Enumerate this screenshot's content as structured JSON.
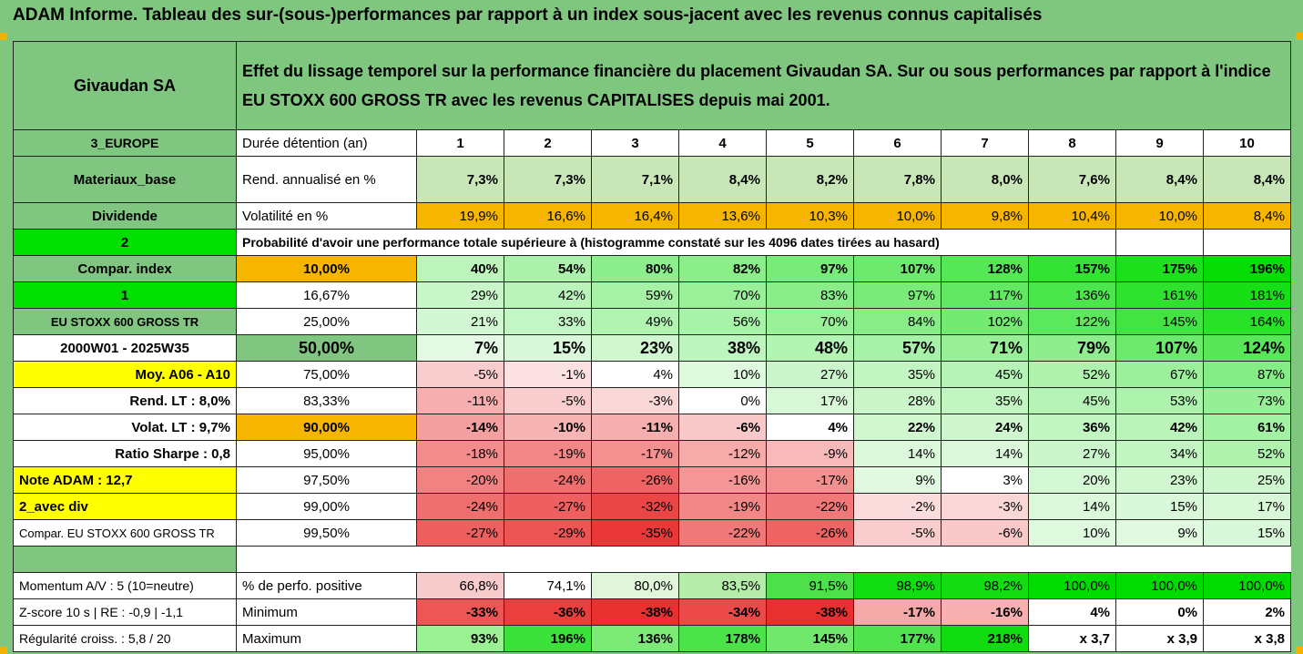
{
  "title": "ADAM Informe. Tableau des sur-(sous-)performances par rapport à un index sous-jacent avec les revenus connus capitalisés",
  "header": {
    "company": "Givaudan SA",
    "description": "Effet du lissage temporel sur la performance financière du placement Givaudan SA. Sur ou sous performances par rapport à l'indice EU STOXX 600 GROSS TR avec les revenus CAPITALISES depuis mai 2001."
  },
  "side": {
    "region": "3_EUROPE",
    "sector": "Materiaux_base",
    "dividende": "Dividende",
    "two": "2",
    "compar_index": "Compar. index",
    "one": "1",
    "index_name": "EU STOXX 600 GROSS TR",
    "period": "2000W01 - 2025W35",
    "moy": "Moy. A06 - A10",
    "rend_lt": "Rend. LT :   8,0%",
    "volat_lt": "Volat. LT :   9,7%",
    "sharpe": "Ratio Sharpe :   0,8",
    "note": "Note ADAM : 12,7",
    "div_mode": "2_avec div",
    "compar_stoxx": "Compar. EU STOXX 600 GROSS TR"
  },
  "labels": {
    "duree": "Durée détention (an)",
    "rend": "Rend. annualisé en %",
    "vol": "Volatilité en %",
    "prob": "Probabilité d'avoir une performance totale supérieure à (histogramme constaté sur les 4096 dates tirées au hasard)",
    "pct_pos": "% de perfo. positive",
    "min": "Minimum",
    "max": "Maximum"
  },
  "years": [
    "1",
    "2",
    "3",
    "4",
    "5",
    "6",
    "7",
    "8",
    "9",
    "10"
  ],
  "rend": [
    "7,3%",
    "7,3%",
    "7,1%",
    "8,4%",
    "8,2%",
    "7,8%",
    "8,0%",
    "7,6%",
    "8,4%",
    "8,4%"
  ],
  "vol": [
    "19,9%",
    "16,6%",
    "16,4%",
    "13,6%",
    "10,3%",
    "10,0%",
    "9,8%",
    "10,4%",
    "10,0%",
    "8,4%"
  ],
  "prob_rows": [
    {
      "p": "10,00%",
      "v": [
        "40%",
        "54%",
        "80%",
        "82%",
        "97%",
        "107%",
        "128%",
        "157%",
        "175%",
        "196%"
      ]
    },
    {
      "p": "16,67%",
      "v": [
        "29%",
        "42%",
        "59%",
        "70%",
        "83%",
        "97%",
        "117%",
        "136%",
        "161%",
        "181%"
      ]
    },
    {
      "p": "25,00%",
      "v": [
        "21%",
        "33%",
        "49%",
        "56%",
        "70%",
        "84%",
        "102%",
        "122%",
        "145%",
        "164%"
      ]
    },
    {
      "p": "50,00%",
      "v": [
        "7%",
        "15%",
        "23%",
        "38%",
        "48%",
        "57%",
        "71%",
        "79%",
        "107%",
        "124%"
      ]
    },
    {
      "p": "75,00%",
      "v": [
        "-5%",
        "-1%",
        "4%",
        "10%",
        "27%",
        "35%",
        "45%",
        "52%",
        "67%",
        "87%"
      ]
    },
    {
      "p": "83,33%",
      "v": [
        "-11%",
        "-5%",
        "-3%",
        "0%",
        "17%",
        "28%",
        "35%",
        "45%",
        "53%",
        "73%"
      ]
    },
    {
      "p": "90,00%",
      "v": [
        "-14%",
        "-10%",
        "-11%",
        "-6%",
        "4%",
        "22%",
        "24%",
        "36%",
        "42%",
        "61%"
      ]
    },
    {
      "p": "95,00%",
      "v": [
        "-18%",
        "-19%",
        "-17%",
        "-12%",
        "-9%",
        "14%",
        "14%",
        "27%",
        "34%",
        "52%"
      ]
    },
    {
      "p": "97,50%",
      "v": [
        "-20%",
        "-24%",
        "-26%",
        "-16%",
        "-17%",
        "9%",
        "3%",
        "20%",
        "23%",
        "25%"
      ]
    },
    {
      "p": "99,00%",
      "v": [
        "-24%",
        "-27%",
        "-32%",
        "-19%",
        "-22%",
        "-2%",
        "-3%",
        "14%",
        "15%",
        "17%"
      ]
    },
    {
      "p": "99,50%",
      "v": [
        "-27%",
        "-29%",
        "-35%",
        "-22%",
        "-26%",
        "-5%",
        "-6%",
        "10%",
        "9%",
        "15%"
      ]
    }
  ],
  "bottom": {
    "momentum": "Momentum A/V : 5 (10=neutre)",
    "zscore": "Z-score 10 s  |  RE : -0,9  |  -1,1",
    "regularite": "Régularité croiss. : 5,8 / 20",
    "pct_pos": [
      "66,8%",
      "74,1%",
      "80,0%",
      "83,5%",
      "91,5%",
      "98,9%",
      "98,2%",
      "100,0%",
      "100,0%",
      "100,0%"
    ],
    "min": [
      "-33%",
      "-36%",
      "-38%",
      "-34%",
      "-38%",
      "-17%",
      "-16%",
      "4%",
      "0%",
      "2%"
    ],
    "max": [
      "93%",
      "196%",
      "136%",
      "178%",
      "145%",
      "177%",
      "218%",
      "x 3,7",
      "x 3,9",
      "x 3,8"
    ]
  },
  "colors": {
    "header_green": "#7fc77f",
    "orange": "#f6b600",
    "bright_green": "#00e000",
    "yellow": "#ffff00",
    "label_red": "#d00000"
  }
}
